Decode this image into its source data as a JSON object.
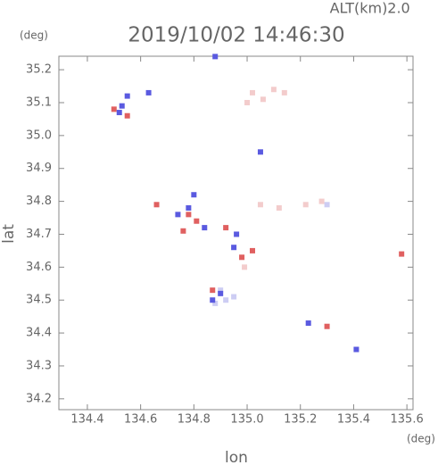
{
  "chart_data": {
    "type": "scatter",
    "title": "2019/10/02 14:46:30",
    "altitude_label": "ALT(km)",
    "altitude_value": "2.0",
    "y_unit": "(deg)",
    "x_unit": "(deg)",
    "x_label": "lon",
    "y_label": "lat",
    "xlim": [
      134.293,
      135.623
    ],
    "ylim": [
      34.167,
      35.241
    ],
    "xticks": [
      134.4,
      134.6,
      134.8,
      {
        "value": 135,
        "label": "135.0"
      },
      135.2,
      135.4,
      135.6
    ],
    "yticks": [
      34.2,
      34.3,
      34.4,
      34.5,
      34.6,
      34.7,
      34.8,
      34.9,
      {
        "value": 35,
        "label": "35.0"
      },
      35.1,
      35.2
    ],
    "series": [
      {
        "color": "#f3cccc",
        "x": [
          135.02,
          135.06,
          135.1,
          135.14,
          135.05,
          135.12,
          135.22,
          135.28,
          134.99,
          135.0
        ],
        "y": [
          35.13,
          35.11,
          35.14,
          35.13,
          34.79,
          34.78,
          34.79,
          34.8,
          34.6,
          35.1
        ]
      },
      {
        "color": "#cdcdf3",
        "x": [
          134.92,
          134.9,
          134.95,
          135.3,
          134.88
        ],
        "y": [
          34.5,
          34.53,
          34.51,
          34.79,
          34.49
        ]
      },
      {
        "color": "#e06060",
        "x": [
          134.5,
          134.55,
          134.66,
          134.78,
          134.81,
          134.92,
          134.98,
          135.3,
          135.58,
          134.87,
          135.02,
          134.76
        ],
        "y": [
          35.08,
          35.06,
          34.79,
          34.76,
          34.74,
          34.72,
          34.63,
          34.42,
          34.64,
          34.53,
          34.65,
          34.71
        ]
      },
      {
        "color": "#5a5ae0",
        "x": [
          134.52,
          134.53,
          134.8,
          134.78,
          134.84,
          134.9,
          134.87,
          134.96,
          135.41,
          134.63,
          134.88,
          134.74,
          134.95,
          135.05,
          134.55,
          135.23
        ],
        "y": [
          35.07,
          35.09,
          34.82,
          34.78,
          34.72,
          34.52,
          34.5,
          34.7,
          34.35,
          35.13,
          35.24,
          34.76,
          34.66,
          34.95,
          35.12,
          34.43
        ]
      }
    ]
  }
}
